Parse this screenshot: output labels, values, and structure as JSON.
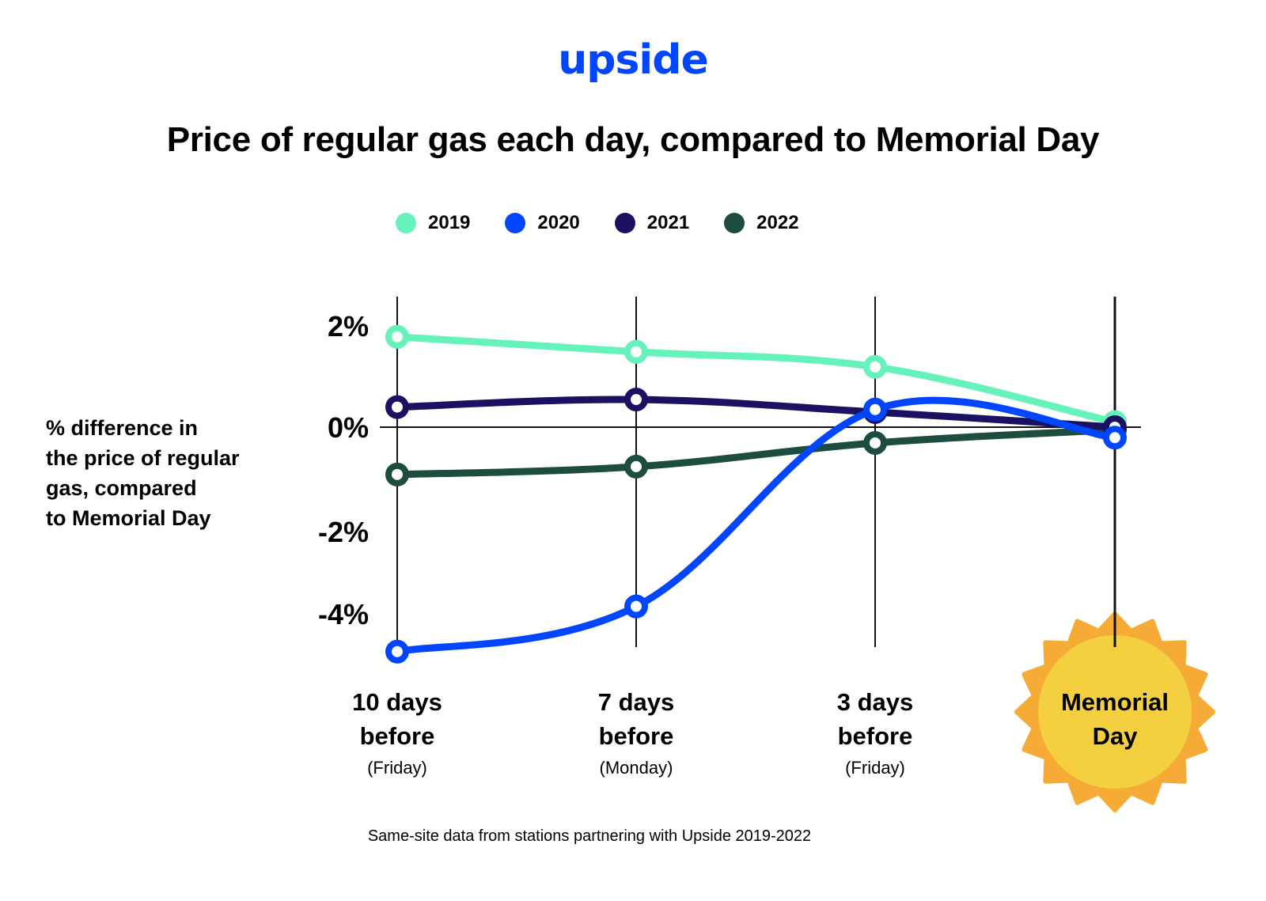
{
  "brand": {
    "logo_text": "upside",
    "logo_color": "#0045ff"
  },
  "header": {
    "title": "Price of regular gas each day, compared to Memorial Day"
  },
  "legend": [
    {
      "label": "2019",
      "color": "#66f2bb"
    },
    {
      "label": "2020",
      "color": "#0045ff"
    },
    {
      "label": "2021",
      "color": "#1a1163"
    },
    {
      "label": "2022",
      "color": "#1d4d40"
    }
  ],
  "axis": {
    "ylabel_lines": [
      "% difference in",
      "the price of regular",
      "gas, compared",
      "to Memorial Day"
    ],
    "yticks": [
      "2%",
      "0%",
      "-2%",
      "-4%"
    ],
    "xcategories": [
      {
        "line1": "10 days",
        "line2": "before",
        "sub": "(Friday)"
      },
      {
        "line1": "7 days",
        "line2": "before",
        "sub": "(Monday)"
      },
      {
        "line1": "3 days",
        "line2": "before",
        "sub": "(Friday)"
      },
      {
        "line1": "Memorial",
        "line2": "Day",
        "sub": ""
      }
    ]
  },
  "sun": {
    "outer_color": "#f5ab35",
    "inner_color": "#f4cf3f"
  },
  "footnote": "Same-site data from stations partnering with Upside 2019-2022",
  "chart_data": {
    "type": "line",
    "title": "Price of regular gas each day, compared to Memorial Day",
    "xlabel": "",
    "ylabel": "% difference in the price of regular gas, compared to Memorial Day",
    "categories": [
      "10 days before (Friday)",
      "7 days before (Monday)",
      "3 days before (Friday)",
      "Memorial Day"
    ],
    "yticks": [
      2,
      0,
      -2,
      -4
    ],
    "ylim": [
      -5,
      2.5
    ],
    "grid": "vertical lines at each category; horizontal line at 0%",
    "legend_position": "top",
    "series": [
      {
        "name": "2019",
        "color": "#66f2bb",
        "values": [
          1.8,
          1.5,
          1.2,
          0.1
        ]
      },
      {
        "name": "2020",
        "color": "#0045ff",
        "values": [
          -4.9,
          -3.8,
          0.35,
          -0.2
        ]
      },
      {
        "name": "2021",
        "color": "#1a1163",
        "values": [
          0.4,
          0.55,
          0.3,
          0.0
        ]
      },
      {
        "name": "2022",
        "color": "#1d4d40",
        "values": [
          -0.9,
          -0.75,
          -0.3,
          -0.05
        ]
      }
    ],
    "source": "Same-site data from stations partnering with Upside 2019-2022"
  }
}
